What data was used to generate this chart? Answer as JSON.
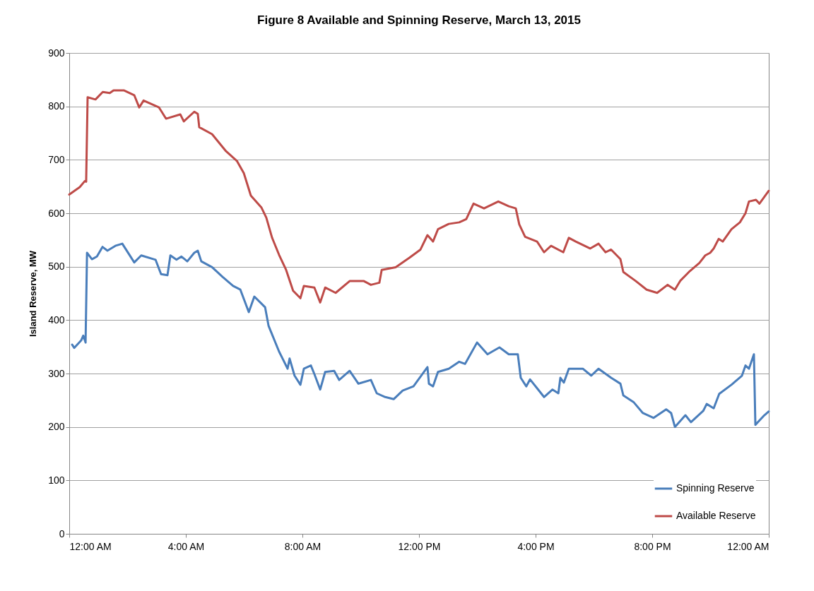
{
  "chart_data": {
    "type": "line",
    "title": "Figure 8 Available and Spinning Reserve, March 13, 2015",
    "ylabel": "Island Reserve, MW",
    "xlim": [
      0,
      24
    ],
    "xticks": [
      {
        "value": 0,
        "label": "12:00 AM"
      },
      {
        "value": 4,
        "label": "4:00 AM"
      },
      {
        "value": 8,
        "label": "8:00 AM"
      },
      {
        "value": 12,
        "label": "12:00 PM"
      },
      {
        "value": 16,
        "label": "4:00 PM"
      },
      {
        "value": 20,
        "label": "8:00 PM"
      },
      {
        "value": 24,
        "label": "12:00 AM"
      }
    ],
    "ylim": [
      0,
      900
    ],
    "yticks": [
      0,
      100,
      200,
      300,
      400,
      500,
      600,
      700,
      800,
      900
    ],
    "grid": "y",
    "legend": "bottom right",
    "series": [
      {
        "name": "Spinning Reserve",
        "color": "#4a7ebb",
        "x": [
          0.1,
          0.17,
          0.41,
          0.48,
          0.56,
          0.61,
          0.78,
          0.95,
          1.14,
          1.31,
          1.58,
          1.82,
          2.23,
          2.47,
          2.96,
          3.15,
          3.37,
          3.47,
          3.68,
          3.85,
          4.05,
          4.29,
          4.41,
          4.53,
          4.9,
          5.26,
          5.62,
          5.87,
          6.16,
          6.35,
          6.72,
          6.84,
          7.2,
          7.32,
          7.49,
          7.56,
          7.73,
          7.93,
          8.05,
          8.29,
          8.41,
          8.61,
          8.78,
          9.09,
          9.26,
          9.62,
          9.92,
          10.35,
          10.55,
          10.84,
          11.13,
          11.44,
          11.81,
          12.29,
          12.34,
          12.48,
          12.65,
          13.02,
          13.38,
          13.58,
          13.99,
          14.35,
          14.76,
          15.08,
          15.39,
          15.49,
          15.68,
          15.81,
          16.29,
          16.58,
          16.78,
          16.85,
          16.97,
          17.14,
          17.62,
          17.91,
          18.16,
          18.59,
          18.91,
          19.01,
          19.37,
          19.68,
          20.05,
          20.48,
          20.65,
          20.78,
          21.14,
          21.33,
          21.75,
          21.87,
          22.11,
          22.3,
          22.72,
          23.08,
          23.2,
          23.32,
          23.49,
          23.54,
          23.73,
          23.85,
          24
        ],
        "values": [
          354,
          348,
          362,
          371,
          358,
          526,
          514,
          519,
          537,
          530,
          539,
          543,
          508,
          521,
          513,
          486,
          484,
          521,
          513,
          519,
          510,
          526,
          530,
          510,
          499,
          481,
          464,
          457,
          415,
          444,
          424,
          389,
          341,
          328,
          309,
          328,
          296,
          279,
          309,
          315,
          299,
          270,
          303,
          305,
          288,
          305,
          281,
          288,
          263,
          256,
          252,
          268,
          276,
          312,
          281,
          276,
          303,
          309,
          322,
          318,
          358,
          336,
          349,
          336,
          336,
          292,
          276,
          289,
          256,
          270,
          263,
          292,
          283,
          309,
          309,
          296,
          309,
          292,
          281,
          259,
          246,
          226,
          217,
          233,
          226,
          200,
          222,
          209,
          230,
          243,
          235,
          262,
          279,
          296,
          315,
          309,
          336,
          204,
          215,
          222,
          229
        ]
      },
      {
        "name": "Available Reserve",
        "color": "#be4b48",
        "x": [
          0,
          0.36,
          0.53,
          0.58,
          0.63,
          0.9,
          1.15,
          1.39,
          1.52,
          1.87,
          2.23,
          2.4,
          2.55,
          3.08,
          3.32,
          3.81,
          3.93,
          4.29,
          4.41,
          4.46,
          4.9,
          5.38,
          5.75,
          5.99,
          6.23,
          6.59,
          6.76,
          6.96,
          7.2,
          7.44,
          7.68,
          7.93,
          8.05,
          8.41,
          8.61,
          8.78,
          9.14,
          9.62,
          10.11,
          10.35,
          10.64,
          10.72,
          11.2,
          11.68,
          12.05,
          12.29,
          12.48,
          12.65,
          13.02,
          13.38,
          13.62,
          13.87,
          14.23,
          14.72,
          15.08,
          15.32,
          15.44,
          15.64,
          16.05,
          16.29,
          16.53,
          16.95,
          17.14,
          17.38,
          17.87,
          18.16,
          18.4,
          18.59,
          18.91,
          19.01,
          19.44,
          19.81,
          20.17,
          20.53,
          20.78,
          20.97,
          21.26,
          21.62,
          21.82,
          21.99,
          22.11,
          22.28,
          22.42,
          22.72,
          23.01,
          23.2,
          23.32,
          23.56,
          23.68,
          24
        ],
        "values": [
          635,
          649,
          660,
          659,
          817,
          813,
          827,
          825,
          830,
          830,
          821,
          798,
          811,
          798,
          777,
          785,
          772,
          790,
          786,
          761,
          748,
          716,
          698,
          675,
          633,
          611,
          592,
          554,
          522,
          494,
          455,
          441,
          464,
          461,
          433,
          461,
          451,
          473,
          473,
          466,
          470,
          494,
          499,
          517,
          532,
          559,
          547,
          570,
          580,
          583,
          589,
          618,
          609,
          622,
          613,
          609,
          579,
          556,
          547,
          527,
          539,
          527,
          554,
          547,
          534,
          543,
          527,
          532,
          514,
          490,
          473,
          457,
          451,
          466,
          457,
          474,
          490,
          507,
          521,
          526,
          534,
          552,
          547,
          570,
          583,
          600,
          622,
          625,
          618,
          642
        ]
      }
    ]
  }
}
